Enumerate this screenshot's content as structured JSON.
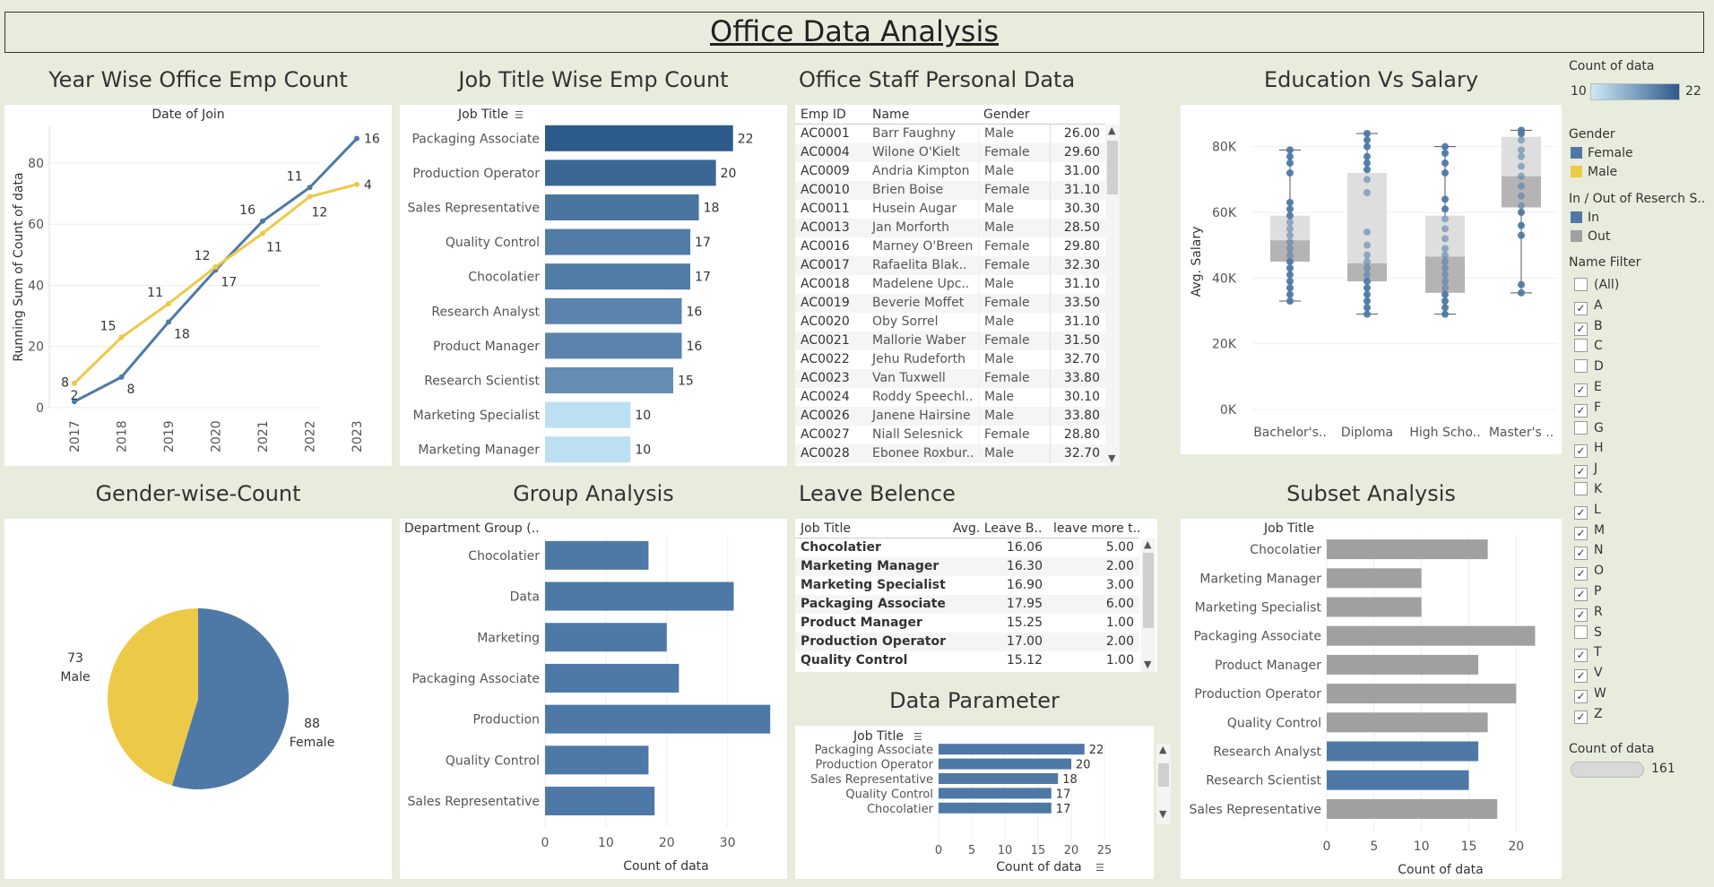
{
  "header": {
    "title": "Office Data Analysis"
  },
  "colors": {
    "bg": "#e8ecdc",
    "blue": "#4e79a7",
    "yellow": "#edc948",
    "gray": "#a0a0a0",
    "darkblue": "#2c5a8a",
    "lightblue": "#bcdff2"
  },
  "year_chart": {
    "title": "Year Wise Office Emp Count",
    "top_label": "Date of Join",
    "ylabel": "Running Sum of Count of data"
  },
  "job_title_chart": {
    "title": "Job Title Wise Emp Count",
    "header": "Job Title"
  },
  "staff_table": {
    "title": "Office Staff Personal Data",
    "columns": [
      "Emp ID",
      "Name",
      "Gender",
      ""
    ],
    "rows": [
      [
        "AC0001",
        "Barr Faughny",
        "Male",
        "26.00"
      ],
      [
        "AC0004",
        "Wilone O'Kielt",
        "Female",
        "29.60"
      ],
      [
        "AC0009",
        "Andria Kimpton",
        "Male",
        "31.00"
      ],
      [
        "AC0010",
        "Brien Boise",
        "Female",
        "31.10"
      ],
      [
        "AC0011",
        "Husein Augar",
        "Male",
        "30.30"
      ],
      [
        "AC0013",
        "Jan Morforth",
        "Male",
        "28.50"
      ],
      [
        "AC0016",
        "Marney O'Breen",
        "Female",
        "29.80"
      ],
      [
        "AC0017",
        "Rafaelita Blak..",
        "Female",
        "32.30"
      ],
      [
        "AC0018",
        "Madelene Upc..",
        "Male",
        "31.10"
      ],
      [
        "AC0019",
        "Beverie Moffet",
        "Female",
        "33.50"
      ],
      [
        "AC0020",
        "Oby Sorrel",
        "Male",
        "31.10"
      ],
      [
        "AC0021",
        "Mallorie Waber",
        "Female",
        "31.50"
      ],
      [
        "AC0022",
        "Jehu Rudeforth",
        "Male",
        "32.70"
      ],
      [
        "AC0023",
        "Van Tuxwell",
        "Female",
        "33.80"
      ],
      [
        "AC0024",
        "Roddy Speechl..",
        "Male",
        "30.10"
      ],
      [
        "AC0026",
        "Janene Hairsine",
        "Male",
        "33.80"
      ],
      [
        "AC0027",
        "Niall Selesnick",
        "Female",
        "28.80"
      ],
      [
        "AC0028",
        "Ebonee Roxbur..",
        "Male",
        "32.70"
      ]
    ]
  },
  "education_chart": {
    "title": "Education Vs Salary",
    "ylabel": "Avg. Salary",
    "yticks": [
      "0K",
      "20K",
      "40K",
      "60K",
      "80K"
    ],
    "categories": [
      "Bachelor's..",
      "Diploma",
      "High Scho..",
      "Master's .."
    ]
  },
  "gender_chart": {
    "title": "Gender-wise-Count",
    "male_label": "Male",
    "female_label": "Female"
  },
  "group_chart": {
    "title": "Group Analysis",
    "header": "Department Group (..",
    "xlabel": "Count of data"
  },
  "leave_table": {
    "title": "Leave Belence",
    "columns": [
      "Job Title",
      "Avg. Leave B..",
      "leave more t.."
    ],
    "rows": [
      [
        "Chocolatier",
        "16.06",
        "5.00"
      ],
      [
        "Marketing Manager",
        "16.30",
        "2.00"
      ],
      [
        "Marketing Specialist",
        "16.90",
        "3.00"
      ],
      [
        "Packaging Associate",
        "17.95",
        "6.00"
      ],
      [
        "Product Manager",
        "15.25",
        "1.00"
      ],
      [
        "Production Operator",
        "17.00",
        "2.00"
      ],
      [
        "Quality Control",
        "15.12",
        "1.00"
      ]
    ]
  },
  "param_chart": {
    "title": "Data Parameter",
    "header": "Job Title",
    "xlabel": "Count of data"
  },
  "subset_chart": {
    "title": "Subset Analysis",
    "header": "Job Title",
    "xlabel": "Count of data"
  },
  "filters": {
    "count_title": "Count of data",
    "count_min": "10",
    "count_max": "22",
    "gender_title": "Gender",
    "gender_items": [
      "Female",
      "Male"
    ],
    "inout_title": "In / Out of Reserch S..",
    "inout_items": [
      "In",
      "Out"
    ],
    "name_title": "Name Filter",
    "name_items": [
      {
        "label": "(All)",
        "checked": false
      },
      {
        "label": "A",
        "checked": true
      },
      {
        "label": "B",
        "checked": true
      },
      {
        "label": "C",
        "checked": false
      },
      {
        "label": "D",
        "checked": false
      },
      {
        "label": "E",
        "checked": true
      },
      {
        "label": "F",
        "checked": true
      },
      {
        "label": "G",
        "checked": false
      },
      {
        "label": "H",
        "checked": true
      },
      {
        "label": "J",
        "checked": true
      },
      {
        "label": "K",
        "checked": false
      },
      {
        "label": "L",
        "checked": true
      },
      {
        "label": "M",
        "checked": true
      },
      {
        "label": "N",
        "checked": true
      },
      {
        "label": "O",
        "checked": true
      },
      {
        "label": "P",
        "checked": true
      },
      {
        "label": "R",
        "checked": true
      },
      {
        "label": "S",
        "checked": false
      },
      {
        "label": "T",
        "checked": true
      },
      {
        "label": "V",
        "checked": true
      },
      {
        "label": "W",
        "checked": true
      },
      {
        "label": "Z",
        "checked": true
      }
    ],
    "count2_title": "Count of data",
    "count2_value": "161"
  },
  "chart_data": [
    {
      "type": "line",
      "x": [
        "2017",
        "2018",
        "2019",
        "2020",
        "2021",
        "2022",
        "2023"
      ],
      "series": [
        {
          "name": "Female",
          "values": [
            2,
            10,
            28,
            45,
            61,
            72,
            88
          ],
          "labels": [
            "2",
            "8",
            "18",
            "17",
            "16",
            "11",
            "16"
          ]
        },
        {
          "name": "Male",
          "values": [
            8,
            23,
            34,
            46,
            57,
            69,
            73
          ],
          "labels": [
            "8",
            "15",
            "11",
            "12",
            "11",
            "12",
            "4"
          ]
        }
      ],
      "ylim": [
        0,
        92
      ],
      "yticks": [
        0,
        20,
        40,
        60,
        80
      ]
    },
    {
      "type": "bar",
      "categories": [
        "Packaging Associate",
        "Production Operator",
        "Sales Representative",
        "Quality Control",
        "Chocolatier",
        "Research Analyst",
        "Product Manager",
        "Research Scientist",
        "Marketing Specialist",
        "Marketing Manager"
      ],
      "values": [
        22,
        20,
        18,
        17,
        17,
        16,
        16,
        15,
        10,
        10
      ]
    },
    {
      "type": "scatter",
      "categories": [
        "Bachelor's..",
        "Diploma",
        "High Scho..",
        "Master's .."
      ],
      "boxes": [
        {
          "min": 33000,
          "q1": 45000,
          "median": 51500,
          "q3": 59000,
          "max": 79000
        },
        {
          "min": 29000,
          "q1": 39000,
          "median": 44500,
          "q3": 72000,
          "max": 84000
        },
        {
          "min": 29000,
          "q1": 35500,
          "median": 46500,
          "q3": 59000,
          "max": 80000
        },
        {
          "min": 35500,
          "q1": 61500,
          "median": 71000,
          "q3": 83000,
          "max": 85000
        }
      ],
      "points": [
        [
          33000,
          35000,
          37000,
          39000,
          41000,
          43000,
          45000,
          47000,
          49000,
          51000,
          53000,
          55000,
          57000,
          59000,
          61000,
          63000,
          72000,
          75000,
          77000,
          79000
        ],
        [
          29000,
          31000,
          33000,
          35000,
          37000,
          39000,
          41000,
          43000,
          45000,
          47000,
          50000,
          54000,
          66000,
          70000,
          73000,
          75000,
          77000,
          80000,
          82000,
          84000
        ],
        [
          29000,
          31000,
          33000,
          35000,
          37000,
          39000,
          41000,
          43000,
          45000,
          47000,
          49000,
          52000,
          55000,
          58000,
          61000,
          64000,
          72000,
          75000,
          78000,
          80000
        ],
        [
          35500,
          38000,
          53000,
          56000,
          60000,
          62000,
          65000,
          68000,
          71000,
          74000,
          77000,
          79000,
          82000,
          84000,
          85000
        ]
      ],
      "ylim": [
        0,
        90000
      ],
      "ylabel": "Avg. Salary"
    },
    {
      "type": "pie",
      "slices": [
        {
          "name": "Female",
          "value": 88
        },
        {
          "name": "Male",
          "value": 73
        }
      ]
    },
    {
      "type": "bar",
      "categories": [
        "Chocolatier",
        "Data",
        "Marketing",
        "Packaging Associate",
        "Production",
        "Quality Control",
        "Sales Representative"
      ],
      "values": [
        17,
        31,
        20,
        22,
        37,
        17,
        18
      ],
      "xticks": [
        0,
        10,
        20,
        30
      ],
      "xlim": [
        0,
        38
      ]
    },
    {
      "type": "bar",
      "categories": [
        "Packaging Associate",
        "Production Operator",
        "Sales Representative",
        "Quality Control",
        "Chocolatier"
      ],
      "values": [
        22,
        20,
        18,
        17,
        17
      ],
      "xticks": [
        0,
        5,
        10,
        15,
        20,
        25
      ],
      "xlim": [
        0,
        25
      ]
    },
    {
      "type": "bar",
      "categories": [
        "Chocolatier",
        "Marketing Manager",
        "Marketing Specialist",
        "Packaging Associate",
        "Product Manager",
        "Production Operator",
        "Quality Control",
        "Research Analyst",
        "Research Scientist",
        "Sales Representative"
      ],
      "values": [
        17,
        10,
        10,
        22,
        16,
        20,
        17,
        16,
        15,
        18
      ],
      "in_research": [
        false,
        false,
        false,
        false,
        false,
        false,
        false,
        true,
        true,
        false
      ],
      "xticks": [
        0,
        5,
        10,
        15,
        20
      ],
      "xlim": [
        0,
        23
      ]
    }
  ]
}
